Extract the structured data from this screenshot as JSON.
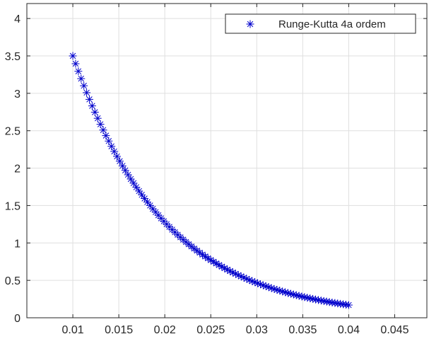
{
  "chart_data": {
    "type": "scatter",
    "title": "",
    "xlabel": "",
    "ylabel": "",
    "xlim": [
      0.005,
      0.0485
    ],
    "ylim": [
      0,
      4.2
    ],
    "grid": true,
    "legend_position": "top-right",
    "xticks": [
      0.01,
      0.015,
      0.02,
      0.025,
      0.03,
      0.035,
      0.04,
      0.045
    ],
    "xtick_labels": [
      "0.01",
      "0.015",
      "0.02",
      "0.025",
      "0.03",
      "0.035",
      "0.04",
      "0.045"
    ],
    "yticks": [
      0,
      0.5,
      1,
      1.5,
      2,
      2.5,
      3,
      3.5,
      4
    ],
    "ytick_labels": [
      "0",
      "0.5",
      "1",
      "1.5",
      "2",
      "2.5",
      "3",
      "3.5",
      "4"
    ],
    "series": [
      {
        "name": "Runge-Kutta 4a ordem",
        "marker": "asterisk",
        "color": "#0000cc",
        "x_start": 0.01,
        "x_end": 0.04,
        "n_points": 101,
        "y_start": 3.5,
        "y_end": 0.17
      }
    ]
  }
}
